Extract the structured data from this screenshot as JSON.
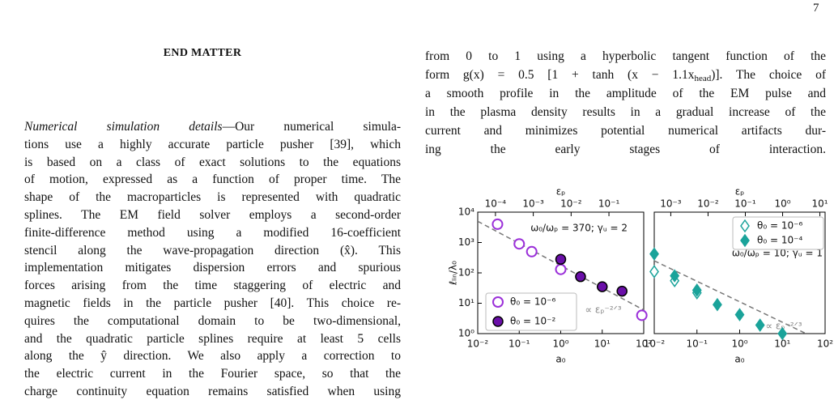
{
  "page_number": "7",
  "left_column": {
    "heading": "END MATTER",
    "paragraph_lead": "Numerical simulation details",
    "lines": [
      "—Our numerical simula-",
      "tions use a highly accurate particle pusher [39], which",
      "is based on a class of exact solutions to the equations",
      "of motion, expressed as a function of proper time. The",
      "shape of the macroparticles is represented with quadratic",
      "splines.   The EM field solver employs a second-order",
      "finite-difference method using a modified 16-coefficient",
      "stencil along the wave-propagation direction (x̂). This",
      "implementation mitigates dispersion errors and spurious",
      "forces arising from the time staggering of electric and",
      "magnetic fields in the particle pusher [40]. This choice re-",
      "quires the computational domain to be two-dimensional,",
      "and the quadratic particle splines require at least 5 cells",
      "along the ŷ direction.  We also apply a correction to",
      "the electric current in the Fourier space, so that the",
      "charge continuity equation remains satisfied when using"
    ]
  },
  "right_column": {
    "first_line": "from 0 to 1 using a hyperbolic tangent function of the",
    "formula_line": {
      "before": "form g(x) = 0.5 [1 + tanh (x − 1.1x",
      "subscript": "head",
      "after": ")]. The choice of"
    },
    "lines": [
      "a smooth profile in the amplitude of the EM pulse and",
      "in the plasma density results in a gradual increase of the",
      "current and minimizes potential numerical artifacts dur-",
      "ing the early stages of interaction."
    ]
  },
  "figure": {
    "panels": [
      {
        "xlabel": "a₀",
        "ylabel": "ℓₗᵢₙ/λ₀",
        "top_xlabel": "εₚ",
        "xscale": "log",
        "yscale": "log",
        "xlim": [
          0.01,
          100
        ],
        "ylim": [
          1,
          10000
        ],
        "xticks": [
          {
            "value": 0.01,
            "label": "10⁻²"
          },
          {
            "value": 0.1,
            "label": "10⁻¹"
          },
          {
            "value": 1,
            "label": "10⁰"
          },
          {
            "value": 10,
            "label": "10¹"
          },
          {
            "value": 100,
            "label": "10²"
          }
        ],
        "yticks": [
          {
            "value": 1,
            "label": "10⁰"
          },
          {
            "value": 10,
            "label": "10¹"
          },
          {
            "value": 100,
            "label": "10²"
          },
          {
            "value": 1000,
            "label": "10³"
          },
          {
            "value": 10000,
            "label": "10⁴"
          }
        ],
        "top_xlim": [
          3.4e-05,
          0.83
        ],
        "top_xticks": [
          {
            "value": 0.0001,
            "label": "10⁻⁴"
          },
          {
            "value": 0.001,
            "label": "10⁻³"
          },
          {
            "value": 0.01,
            "label": "10⁻²"
          },
          {
            "value": 0.1,
            "label": "10⁻¹"
          }
        ],
        "annotation": "ω₀/ωₚ = 370; γᵤ = 2",
        "fit_label": "∝ εₚ⁻²ᐟ³",
        "fit_line": {
          "x": [
            0.01,
            100
          ],
          "y": [
            5000,
            6
          ]
        },
        "series": [
          {
            "name": "θ₀ = 10⁻⁶",
            "marker": "circle",
            "filled": false,
            "color": "#9b30d9",
            "x": [
              0.03,
              0.1,
              0.2,
              1,
              90
            ],
            "y": [
              4000,
              900,
              500,
              130,
              4
            ]
          },
          {
            "name": "θ₀ = 10⁻²",
            "marker": "circle",
            "filled": true,
            "color": "#6a0fa8",
            "x": [
              1,
              3,
              10,
              30
            ],
            "y": [
              280,
              75,
              35,
              25
            ]
          }
        ]
      },
      {
        "xlabel": "a₀",
        "top_xlabel": "εₚ",
        "xscale": "log",
        "yscale": "log",
        "xlim": [
          0.01,
          100
        ],
        "ylim": [
          1,
          10000
        ],
        "xticks": [
          {
            "value": 0.01,
            "label": "10⁻²"
          },
          {
            "value": 0.1,
            "label": "10⁻¹"
          },
          {
            "value": 1,
            "label": "10⁰"
          },
          {
            "value": 10,
            "label": "10¹"
          },
          {
            "value": 100,
            "label": "10²"
          }
        ],
        "top_xlim": [
          0.00036,
          13.8
        ],
        "top_xticks": [
          {
            "value": 0.001,
            "label": "10⁻³"
          },
          {
            "value": 0.01,
            "label": "10⁻²"
          },
          {
            "value": 0.1,
            "label": "10⁻¹"
          },
          {
            "value": 1,
            "label": "10⁰"
          },
          {
            "value": 10,
            "label": "10¹"
          }
        ],
        "annotation": "ω₀/ωₚ = 10; γᵤ = 1",
        "fit_label": "∝ εₚ⁻²ᐟ³",
        "fit_line": {
          "x": [
            0.01,
            100
          ],
          "y": [
            250,
            0.5
          ]
        },
        "series": [
          {
            "name": "θ₀ = 10⁻⁶",
            "marker": "diamond",
            "filled": false,
            "color": "#1aa39a",
            "x": [
              0.01,
              0.03,
              0.1
            ],
            "y": [
              110,
              55,
              22
            ]
          },
          {
            "name": "θ₀ = 10⁻⁴",
            "marker": "diamond",
            "filled": true,
            "color": "#1aa39a",
            "x": [
              0.01,
              0.03,
              0.1,
              0.3,
              1,
              3,
              10
            ],
            "y": [
              420,
              80,
              27,
              9,
              4.2,
              1.9,
              1
            ]
          }
        ]
      }
    ]
  }
}
